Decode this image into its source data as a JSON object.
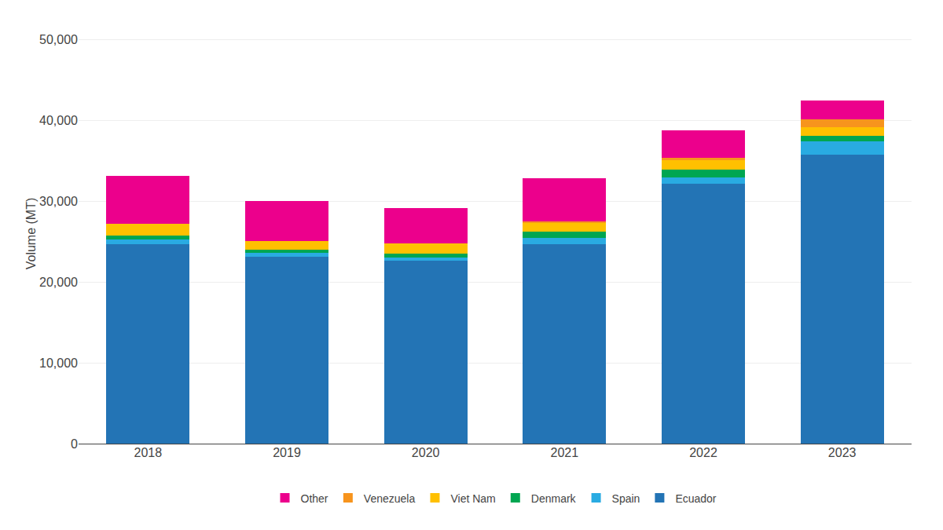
{
  "chart_data": {
    "type": "bar",
    "stacked": true,
    "ylabel": "Volume (MT)",
    "categories": [
      "2018",
      "2019",
      "2020",
      "2021",
      "2022",
      "2023"
    ],
    "series": [
      {
        "name": "Ecuador",
        "color": "#2374b5",
        "values": [
          24700,
          23100,
          22600,
          24700,
          32200,
          35800
        ]
      },
      {
        "name": "Spain",
        "color": "#29abe2",
        "values": [
          550,
          550,
          450,
          750,
          750,
          1600
        ]
      },
      {
        "name": "Denmark",
        "color": "#00a651",
        "values": [
          550,
          350,
          450,
          800,
          1000,
          700
        ]
      },
      {
        "name": "Viet Nam",
        "color": "#ffc000",
        "values": [
          1400,
          1100,
          1300,
          1100,
          1100,
          1100
        ]
      },
      {
        "name": "Venezuela",
        "color": "#f7941d",
        "values": [
          0,
          0,
          0,
          150,
          350,
          900
        ]
      },
      {
        "name": "Other",
        "color": "#ec008c",
        "values": [
          5900,
          4900,
          4400,
          5400,
          3400,
          2400
        ]
      }
    ],
    "ylim": [
      0,
      52000
    ],
    "yticks": [
      0,
      {
        "value": 10000,
        "label": "10,000"
      },
      {
        "value": 20000,
        "label": "20,000"
      },
      {
        "value": 30000,
        "label": "30,000"
      },
      {
        "value": 40000,
        "label": "40,000"
      },
      {
        "value": 50000,
        "label": "50,000"
      }
    ],
    "grid": true,
    "legend": "bottom"
  }
}
